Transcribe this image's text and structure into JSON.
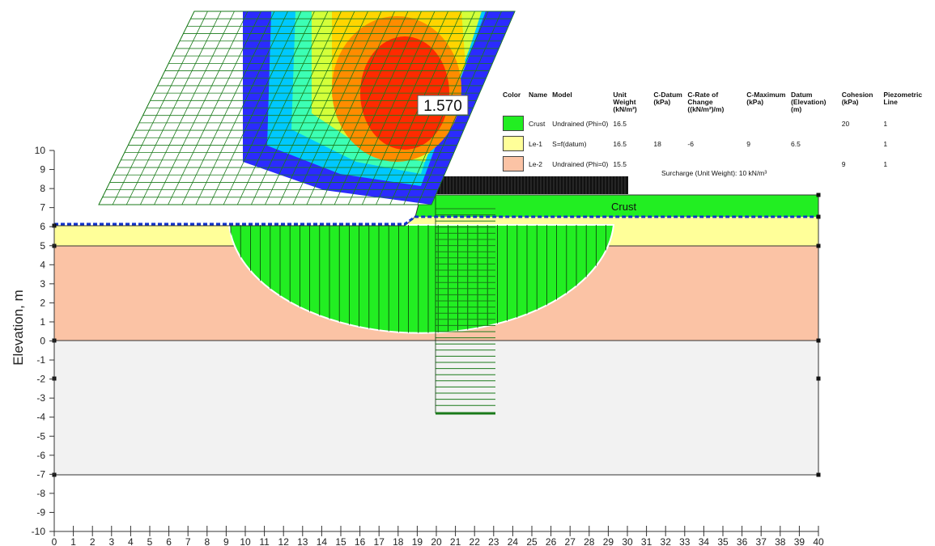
{
  "axes": {
    "y_label": "Elevation, m",
    "y_ticks": [
      "10",
      "9",
      "8",
      "7",
      "6",
      "5",
      "4",
      "3",
      "2",
      "1",
      "0",
      "-1",
      "-2",
      "-3",
      "-4",
      "-5",
      "-6",
      "-7",
      "-8",
      "-9",
      "-10"
    ],
    "x_ticks": [
      "0",
      "1",
      "2",
      "3",
      "4",
      "5",
      "6",
      "7",
      "8",
      "9",
      "10",
      "11",
      "12",
      "13",
      "14",
      "15",
      "16",
      "17",
      "18",
      "19",
      "20",
      "21",
      "22",
      "23",
      "24",
      "25",
      "26",
      "27",
      "28",
      "29",
      "30",
      "31",
      "32",
      "33",
      "34",
      "35",
      "36",
      "37",
      "38",
      "39",
      "40"
    ]
  },
  "safety_factor": "1.570",
  "surcharge_label": "Surcharge (Unit Weight): 10 kN/m³",
  "layer_label": "Crust",
  "materials": {
    "headers": [
      "Color",
      "Name",
      "Model",
      "Unit Weight (kN/m³)",
      "C-Datum (kPa)",
      "C-Rate of Change ((kN/m²)/m)",
      "C-Maximum (kPa)",
      "Datum (Elevation) (m)",
      "Cohesion (kPa)",
      "Piezometric Line"
    ],
    "rows": [
      {
        "color": "#22ee22",
        "name": "Crust",
        "model": "Undrained (Phi=0)",
        "unit_weight": "16.5",
        "c_datum": "",
        "c_rate": "",
        "c_max": "",
        "datum": "",
        "cohesion": "20",
        "piezo": "1"
      },
      {
        "color": "#ffff99",
        "name": "Le-1",
        "model": "S=f(datum)",
        "unit_weight": "16.5",
        "c_datum": "18",
        "c_rate": "-6",
        "c_max": "9",
        "datum": "6.5",
        "cohesion": "",
        "piezo": "1"
      },
      {
        "color": "#fbc3a5",
        "name": "Le-2",
        "model": "Undrained (Phi=0)",
        "unit_weight": "15.5",
        "c_datum": "",
        "c_rate": "",
        "c_max": "",
        "datum": "",
        "cohesion": "9",
        "piezo": "1"
      }
    ]
  },
  "colors": {
    "crust": "#22ee22",
    "le1": "#ffff99",
    "le2": "#fbc3a5",
    "base": "#f2f2f2",
    "slip": "#22ee22",
    "water": "#1133cc",
    "grid": "#1a7a1a"
  }
}
